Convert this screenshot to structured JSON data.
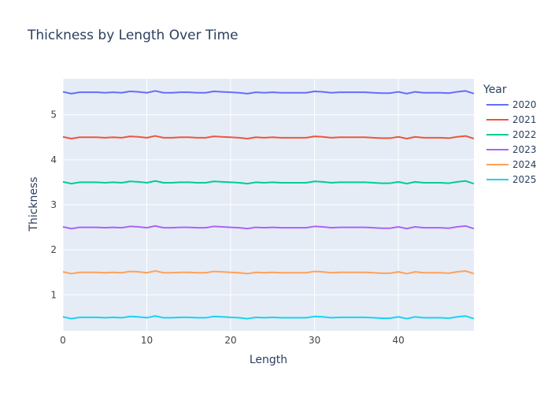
{
  "chart_data": {
    "type": "line",
    "title": "Thickness by Length Over Time",
    "xlabel": "Length",
    "ylabel": "Thickness",
    "xlim": [
      0,
      49
    ],
    "ylim": [
      0.2,
      5.8
    ],
    "x_ticks": [
      0,
      10,
      20,
      30,
      40
    ],
    "y_ticks": [
      1,
      2,
      3,
      4,
      5
    ],
    "grid": true,
    "legend_title": "Year",
    "legend_position": "right",
    "x": [
      0,
      1,
      2,
      3,
      4,
      5,
      6,
      7,
      8,
      9,
      10,
      11,
      12,
      13,
      14,
      15,
      16,
      17,
      18,
      19,
      20,
      21,
      22,
      23,
      24,
      25,
      26,
      27,
      28,
      29,
      30,
      31,
      32,
      33,
      34,
      35,
      36,
      37,
      38,
      39,
      40,
      41,
      42,
      43,
      44,
      45,
      46,
      47,
      48,
      49
    ],
    "series": [
      {
        "name": "2020",
        "color": "#636efa",
        "values": [
          5.51,
          5.47,
          5.5,
          5.5,
          5.5,
          5.49,
          5.5,
          5.49,
          5.52,
          5.51,
          5.49,
          5.53,
          5.49,
          5.49,
          5.5,
          5.5,
          5.49,
          5.49,
          5.52,
          5.51,
          5.5,
          5.49,
          5.47,
          5.5,
          5.49,
          5.5,
          5.49,
          5.49,
          5.49,
          5.49,
          5.52,
          5.51,
          5.49,
          5.5,
          5.5,
          5.5,
          5.5,
          5.49,
          5.48,
          5.48,
          5.51,
          5.47,
          5.51,
          5.49,
          5.49,
          5.49,
          5.48,
          5.51,
          5.53,
          5.47
        ]
      },
      {
        "name": "2021",
        "color": "#ef553b",
        "values": [
          4.51,
          4.47,
          4.5,
          4.5,
          4.5,
          4.49,
          4.5,
          4.49,
          4.52,
          4.51,
          4.49,
          4.53,
          4.49,
          4.49,
          4.5,
          4.5,
          4.49,
          4.49,
          4.52,
          4.51,
          4.5,
          4.49,
          4.47,
          4.5,
          4.49,
          4.5,
          4.49,
          4.49,
          4.49,
          4.49,
          4.52,
          4.51,
          4.49,
          4.5,
          4.5,
          4.5,
          4.5,
          4.49,
          4.48,
          4.48,
          4.51,
          4.47,
          4.51,
          4.49,
          4.49,
          4.49,
          4.48,
          4.51,
          4.53,
          4.47
        ]
      },
      {
        "name": "2022",
        "color": "#00cc96",
        "values": [
          3.51,
          3.47,
          3.5,
          3.5,
          3.5,
          3.49,
          3.5,
          3.49,
          3.52,
          3.51,
          3.49,
          3.53,
          3.49,
          3.49,
          3.5,
          3.5,
          3.49,
          3.49,
          3.52,
          3.51,
          3.5,
          3.49,
          3.47,
          3.5,
          3.49,
          3.5,
          3.49,
          3.49,
          3.49,
          3.49,
          3.52,
          3.51,
          3.49,
          3.5,
          3.5,
          3.5,
          3.5,
          3.49,
          3.48,
          3.48,
          3.51,
          3.47,
          3.51,
          3.49,
          3.49,
          3.49,
          3.48,
          3.51,
          3.53,
          3.47
        ]
      },
      {
        "name": "2023",
        "color": "#ab63fa",
        "values": [
          2.51,
          2.47,
          2.5,
          2.5,
          2.5,
          2.49,
          2.5,
          2.49,
          2.52,
          2.51,
          2.49,
          2.53,
          2.49,
          2.49,
          2.5,
          2.5,
          2.49,
          2.49,
          2.52,
          2.51,
          2.5,
          2.49,
          2.47,
          2.5,
          2.49,
          2.5,
          2.49,
          2.49,
          2.49,
          2.49,
          2.52,
          2.51,
          2.49,
          2.5,
          2.5,
          2.5,
          2.5,
          2.49,
          2.48,
          2.48,
          2.51,
          2.47,
          2.51,
          2.49,
          2.49,
          2.49,
          2.48,
          2.51,
          2.53,
          2.47
        ]
      },
      {
        "name": "2024",
        "color": "#ffa15a",
        "values": [
          1.51,
          1.47,
          1.5,
          1.5,
          1.5,
          1.49,
          1.5,
          1.49,
          1.52,
          1.51,
          1.49,
          1.53,
          1.49,
          1.49,
          1.5,
          1.5,
          1.49,
          1.49,
          1.52,
          1.51,
          1.5,
          1.49,
          1.47,
          1.5,
          1.49,
          1.5,
          1.49,
          1.49,
          1.49,
          1.49,
          1.52,
          1.51,
          1.49,
          1.5,
          1.5,
          1.5,
          1.5,
          1.49,
          1.48,
          1.48,
          1.51,
          1.47,
          1.51,
          1.49,
          1.49,
          1.49,
          1.48,
          1.51,
          1.53,
          1.47
        ]
      },
      {
        "name": "2025",
        "color": "#19d3f3",
        "values": [
          0.51,
          0.47,
          0.5,
          0.5,
          0.5,
          0.49,
          0.5,
          0.49,
          0.52,
          0.51,
          0.49,
          0.53,
          0.49,
          0.49,
          0.5,
          0.5,
          0.49,
          0.49,
          0.52,
          0.51,
          0.5,
          0.49,
          0.47,
          0.5,
          0.49,
          0.5,
          0.49,
          0.49,
          0.49,
          0.49,
          0.52,
          0.51,
          0.49,
          0.5,
          0.5,
          0.5,
          0.5,
          0.49,
          0.48,
          0.48,
          0.51,
          0.47,
          0.51,
          0.49,
          0.49,
          0.49,
          0.48,
          0.51,
          0.53,
          0.47
        ]
      }
    ]
  },
  "colors": {
    "plot_background": "#e5ecf6",
    "grid": "#ffffff",
    "text": "#2a3f5f",
    "tick_text": "#444444"
  }
}
